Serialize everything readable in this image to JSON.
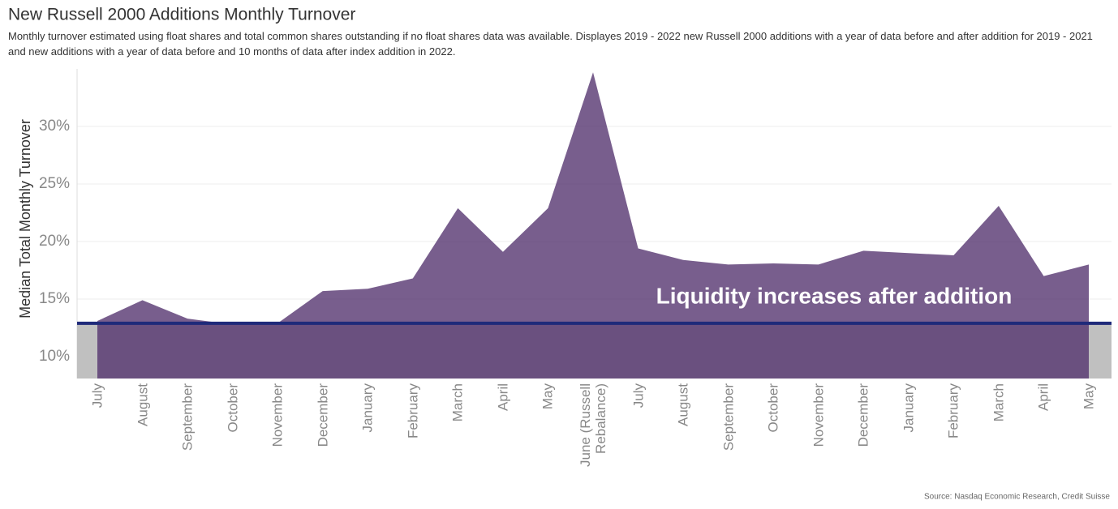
{
  "chart_data": {
    "type": "area",
    "title": "New Russell 2000 Additions Monthly Turnover",
    "subtitle": "Monthly turnover estimated  using float shares and total common shares outstanding if no float shares data was available. Displayes 2019 - 2022 new Russell 2000 additions with a year of data before and after addition for 2019 - 2021 and new additions with a year of data before and 10 months of data after index addition in 2022.",
    "y_label": "Median Total Monthly Turnover",
    "annotation": "Liquidity increases after addition",
    "source": "Source: Nasdaq Economic Research, Credit Suisse",
    "categories": [
      "July",
      "August",
      "September",
      "October",
      "November",
      "December",
      "January",
      "February",
      "March",
      "April",
      "May",
      "June (Russell Rebalance)",
      "July",
      "August",
      "September",
      "October",
      "November",
      "December",
      "January",
      "February",
      "March",
      "April",
      "May"
    ],
    "values": [
      13.1,
      14.9,
      13.3,
      12.8,
      12.9,
      15.7,
      15.9,
      16.8,
      22.9,
      19.1,
      22.9,
      34.7,
      19.4,
      18.4,
      18.0,
      18.1,
      18.0,
      19.2,
      19.0,
      18.8,
      23.1,
      17.0,
      18.0
    ],
    "color": "#4f2d6b",
    "reference_line": 12.9,
    "reference_color": "#1f2a7a",
    "ylim": [
      8.1,
      35
    ],
    "yticks": [
      {
        "value": 10,
        "label": "10%"
      },
      {
        "value": 15,
        "label": "15%"
      },
      {
        "value": 20,
        "label": "20%"
      },
      {
        "value": 25,
        "label": "25%"
      },
      {
        "value": 30,
        "label": "30%"
      }
    ],
    "grid": true
  }
}
